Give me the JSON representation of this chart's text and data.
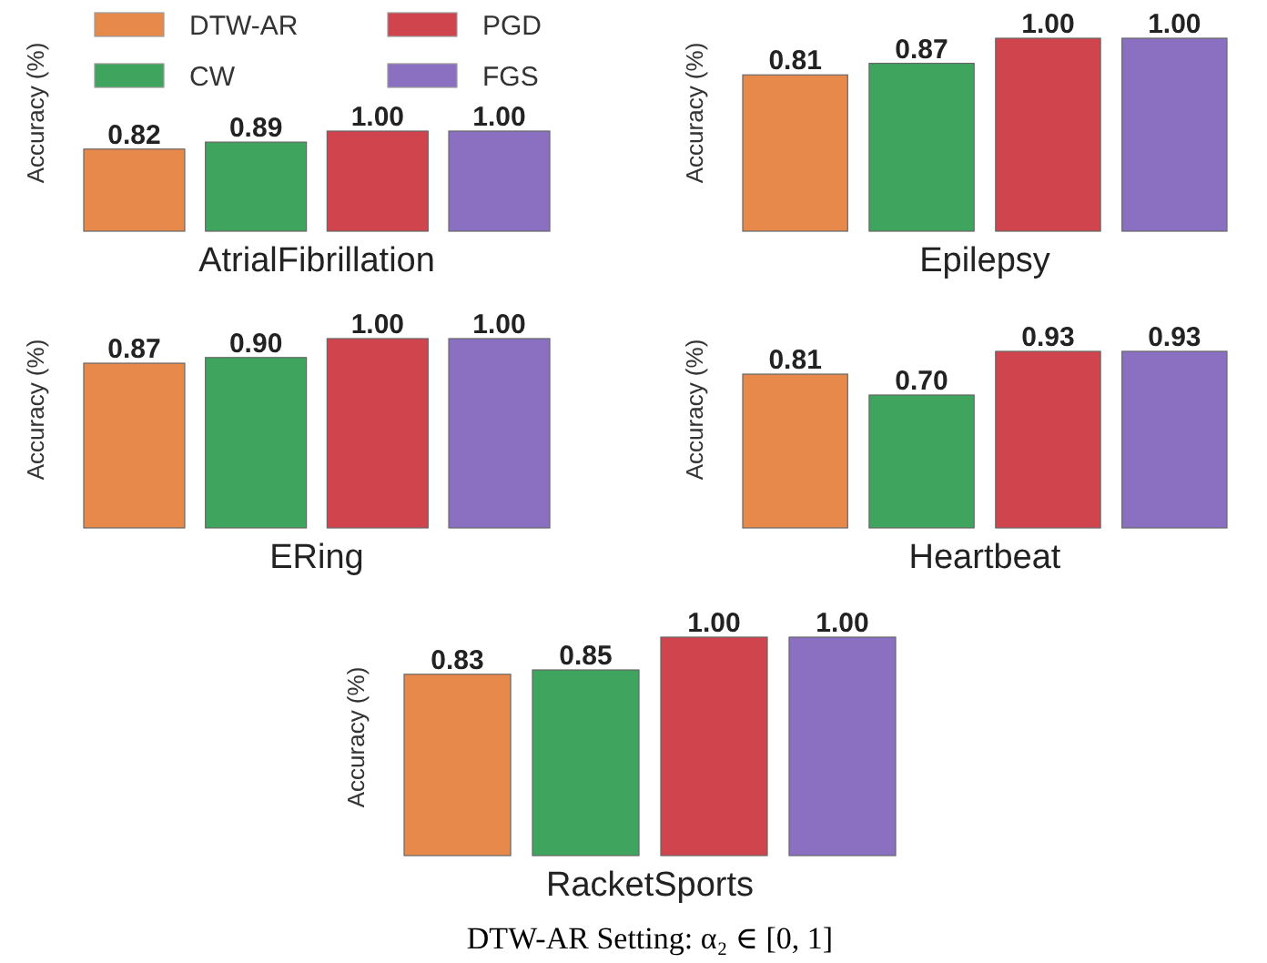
{
  "chart_data": [
    {
      "type": "bar",
      "xlabel": "AtrialFibrillation",
      "ylabel": "Accuracy (%)",
      "categories": [
        null
      ],
      "tick_labels": false,
      "legend": "top",
      "series": [
        {
          "name": "DTW-AR",
          "color": "#e8894c",
          "values": [
            0.82
          ],
          "value_labels": [
            "0.82"
          ]
        },
        {
          "name": "CW",
          "color": "#3fa55e",
          "values": [
            0.89
          ],
          "value_labels": [
            "0.89"
          ]
        },
        {
          "name": "PGD",
          "color": "#d0454d",
          "values": [
            1.0
          ],
          "value_labels": [
            "1.00"
          ]
        },
        {
          "name": "FGS",
          "color": "#8b70c2",
          "values": [
            1.0
          ],
          "value_labels": [
            "1.00"
          ]
        }
      ]
    },
    {
      "type": "bar",
      "xlabel": "Epilepsy",
      "ylabel": "Accuracy (%)",
      "categories": [
        null
      ],
      "tick_labels": false,
      "series": [
        {
          "color": "#e8894c",
          "values": [
            0.81
          ],
          "value_labels": [
            "0.81"
          ]
        },
        {
          "color": "#3fa55e",
          "values": [
            0.87
          ],
          "value_labels": [
            "0.87"
          ]
        },
        {
          "color": "#d0454d",
          "values": [
            1.0
          ],
          "value_labels": [
            "1.00"
          ]
        },
        {
          "color": "#8b70c2",
          "values": [
            1.0
          ],
          "value_labels": [
            "1.00"
          ]
        }
      ]
    },
    {
      "type": "bar",
      "xlabel": "ERing",
      "ylabel": "Accuracy (%)",
      "categories": [
        null
      ],
      "tick_labels": false,
      "series": [
        {
          "color": "#e8894c",
          "values": [
            0.87
          ],
          "value_labels": [
            "0.87"
          ]
        },
        {
          "color": "#3fa55e",
          "values": [
            0.9
          ],
          "value_labels": [
            "0.90"
          ]
        },
        {
          "color": "#d0454d",
          "values": [
            1.0
          ],
          "value_labels": [
            "1.00"
          ]
        },
        {
          "color": "#8b70c2",
          "values": [
            1.0
          ],
          "value_labels": [
            "1.00"
          ]
        }
      ]
    },
    {
      "type": "bar",
      "xlabel": "Heartbeat",
      "ylabel": "Accuracy (%)",
      "categories": [
        null
      ],
      "tick_labels": false,
      "series": [
        {
          "color": "#e8894c",
          "values": [
            0.81
          ],
          "value_labels": [
            "0.81"
          ]
        },
        {
          "color": "#3fa55e",
          "values": [
            0.7
          ],
          "value_labels": [
            "0.70"
          ]
        },
        {
          "color": "#d0454d",
          "values": [
            0.93
          ],
          "value_labels": [
            "0.93"
          ]
        },
        {
          "color": "#8b70c2",
          "values": [
            0.93
          ],
          "value_labels": [
            "0.93"
          ]
        }
      ]
    },
    {
      "type": "bar",
      "xlabel": "RacketSports",
      "ylabel": "Accuracy (%)",
      "categories": [
        null
      ],
      "tick_labels": false,
      "annotations": [
        "DTW-AR Setting: α₂ ∈ [0, 1]"
      ],
      "series": [
        {
          "color": "#e8894c",
          "values": [
            0.83
          ],
          "value_labels": [
            "0.83"
          ]
        },
        {
          "color": "#3fa55e",
          "values": [
            0.85
          ],
          "value_labels": [
            "0.85"
          ]
        },
        {
          "color": "#d0454d",
          "values": [
            1.0
          ],
          "value_labels": [
            "1.00"
          ]
        },
        {
          "color": "#8b70c2",
          "values": [
            1.0
          ],
          "value_labels": [
            "1.00"
          ]
        }
      ]
    }
  ]
}
